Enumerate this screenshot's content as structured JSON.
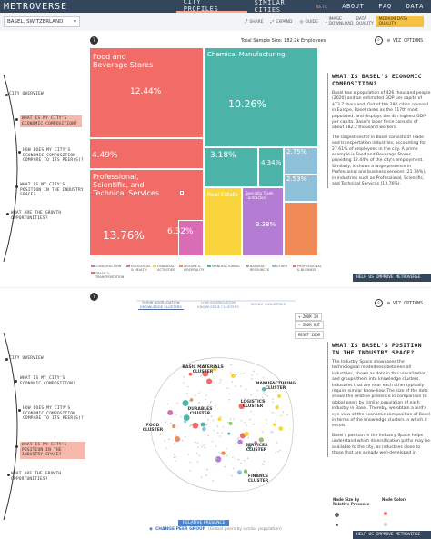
{
  "nav": {
    "brand": "METROVERSE",
    "city_profiles": "CITY PROFILES",
    "similar_cities": "SIMILAR CITIES",
    "beta": "BETA",
    "about": "ABOUT",
    "faq": "FAQ",
    "data": "DATA"
  },
  "subbar": {
    "city": "BASEL, SWITZERLAND",
    "share": "SHARE",
    "expand": "EXPAND",
    "guide": "GUIDE",
    "download": "IMAGE DOWNLOAD",
    "data_quality": "DATA QUALITY",
    "quality_pill": "MEDIUM DATA QUALITY"
  },
  "timeline": {
    "items": [
      "CITY OVERVIEW",
      "WHAT IS MY CITY'S ECONOMIC COMPOSITION?",
      "HOW DOES MY CITY'S ECONOMIC COMPOSITION COMPARE TO ITS PEER(S)?",
      "WHAT IS MY CITY'S POSITION IN THE INDUSTRY SPACE?",
      "WHAT ARE THE GROWTH OPPORTUNITIES?"
    ]
  },
  "panel1": {
    "help": "?",
    "sample": "Total Sample Size: 182.2k Employees",
    "viz_options": "VIZ OPTIONS",
    "heading": "WHAT IS BASEL'S ECONOMIC COMPOSITION?",
    "para1": "Basel has a population of 426 thousand people (2020) and an estimated GDP per capita of $73.7 thousand. Out of the 290 cities covered in Europe, Basel ranks as the 117th most populated, and displays the 4th highest GDP per capita. Basel's labor force consists of about 182.2 thousand workers.",
    "para2": "The largest sector in Basel consists of Trade and transportation industries, accounting for 27.61% of employees in the city. A prime example is Food and Beverage Stores, providing 12.44% of the city's employment. Similarly, it shows a large presence in Professional and business services (21.74%), in industries such as Professional, Scientific, and Technical Services (13.76%).",
    "help_bar": "HELP US IMPROVE METROVERSE"
  },
  "treemap": [
    {
      "label": "Food and Beverage Stores",
      "pct": "12.44%",
      "color": "#f26c67"
    },
    {
      "label": "Chemical Manufacturing",
      "pct": "10.26%",
      "color": "#4cb3a9"
    },
    {
      "label": "Professional, Scientific, and Technical Services",
      "pct": "13.76%",
      "color": "#f26c67"
    },
    {
      "label": "",
      "pct": "4.49%",
      "color": "#f26c67"
    },
    {
      "label": "",
      "pct": "3.18%",
      "color": "#4cb3a9"
    },
    {
      "label": "",
      "pct": "2.75%",
      "color": "#8fc0d9"
    },
    {
      "label": "",
      "pct": "4.34%",
      "color": "#4cb3a9"
    },
    {
      "label": "",
      "pct": "2.53%",
      "color": "#8fc0d9"
    },
    {
      "label": "Real Estate",
      "pct": "",
      "color": "#f9d43c"
    },
    {
      "label": "",
      "pct": "6.32%",
      "color": "#d96cb4"
    },
    {
      "label": "Specialty Trade Contractors",
      "pct": "",
      "color": "#b57cd4"
    },
    {
      "label": "",
      "pct": "3.38%",
      "color": "#b57cd4"
    }
  ],
  "legend": [
    {
      "label": "CONSTRUCTION",
      "color": "#b57cd4"
    },
    {
      "label": "EDUCATION & HEALTH",
      "color": "#d96cb4"
    },
    {
      "label": "FINANCIAL ACTIVITIES",
      "color": "#f9d43c"
    },
    {
      "label": "LEISURE & HOSPITALITY",
      "color": "#f08b57"
    },
    {
      "label": "MANUFACTURING",
      "color": "#4cb3a9"
    },
    {
      "label": "NATURAL RESOURCES",
      "color": "#8dc36b"
    },
    {
      "label": "OTHER",
      "color": "#8fc0d9"
    },
    {
      "label": "PROFESSIONAL & BUSINESS",
      "color": "#f26c67"
    },
    {
      "label": "TRADE & TRANSPORTATION",
      "color": "#f26c67"
    }
  ],
  "panel2": {
    "bread": [
      "SHOW AGGREGATION KNOWLEDGE CLUSTERS",
      "LOW AGGREGATION KNOWLEDGE CLUSTERS",
      "SINGLE INDUSTRIES"
    ],
    "zoom_in": "ZOOM IN",
    "zoom_out": "ZOOM OUT",
    "reset_zoom": "RESET ZOOM",
    "heading": "WHAT IS BASEL'S POSITION IN THE INDUSTRY SPACE?",
    "para1": "The Industry Space showcases the technological relatedness between all industries, shown as dots in this visualization, and groups them into knowledge clusters. Industries that are near each other typically require similar know-how. The size of the dots shows the relative presence in comparison to global peers by similar population of each industry in Basel. Thereby, we obtain a bird's eye view of the economic composition of Basel in terms of the knowledge clusters in which it excels.",
    "para2": "Basel's position in the Industry Space helps understand which diversification paths may be available to the city, as industries close to those that are already well-developed in",
    "node_size": "Node Size by Relative Presence",
    "node_colors": "Node Colors",
    "relative_presence": "RELATIVE PRESENCE",
    "change_peer": "CHANGE PEER GROUP",
    "peer_note": "(Global peers by similar population)",
    "help_bar": "HELP US IMPROVE METROVERSE",
    "clusters": [
      "BASIC MATERIALS CLUSTER",
      "MANUFACTURING CLUSTER",
      "LOGISTICS CLUSTER",
      "DURABLES CLUSTER",
      "FOOD CLUSTER",
      "SERVICES CLUSTER",
      "FINANCE CLUSTER"
    ]
  }
}
